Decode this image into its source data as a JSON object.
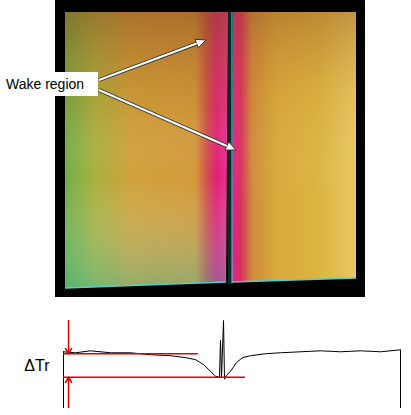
{
  "image": {
    "label": "Wake region"
  },
  "chart_data": {
    "type": "line",
    "x": [
      0,
      12,
      27,
      47,
      67,
      87,
      107,
      122,
      132,
      140,
      147,
      152,
      156,
      157,
      158,
      160,
      161,
      163,
      167,
      173,
      179,
      187,
      202,
      217,
      237,
      257,
      277,
      297,
      317,
      337
    ],
    "values": [
      58,
      57,
      59,
      57,
      57,
      55,
      54,
      52,
      50,
      45,
      38,
      33,
      32,
      70,
      32,
      90,
      30,
      34,
      38,
      47,
      52,
      54,
      56,
      57,
      58,
      59,
      58,
      59,
      58,
      60
    ],
    "xlim": [
      0,
      337
    ],
    "ylim": [
      0,
      90
    ],
    "tick_labels": false,
    "color": "#000000",
    "delta_tr": {
      "label": "ΔTr",
      "upper": 56,
      "lower": 32,
      "color": "#e00000"
    }
  }
}
